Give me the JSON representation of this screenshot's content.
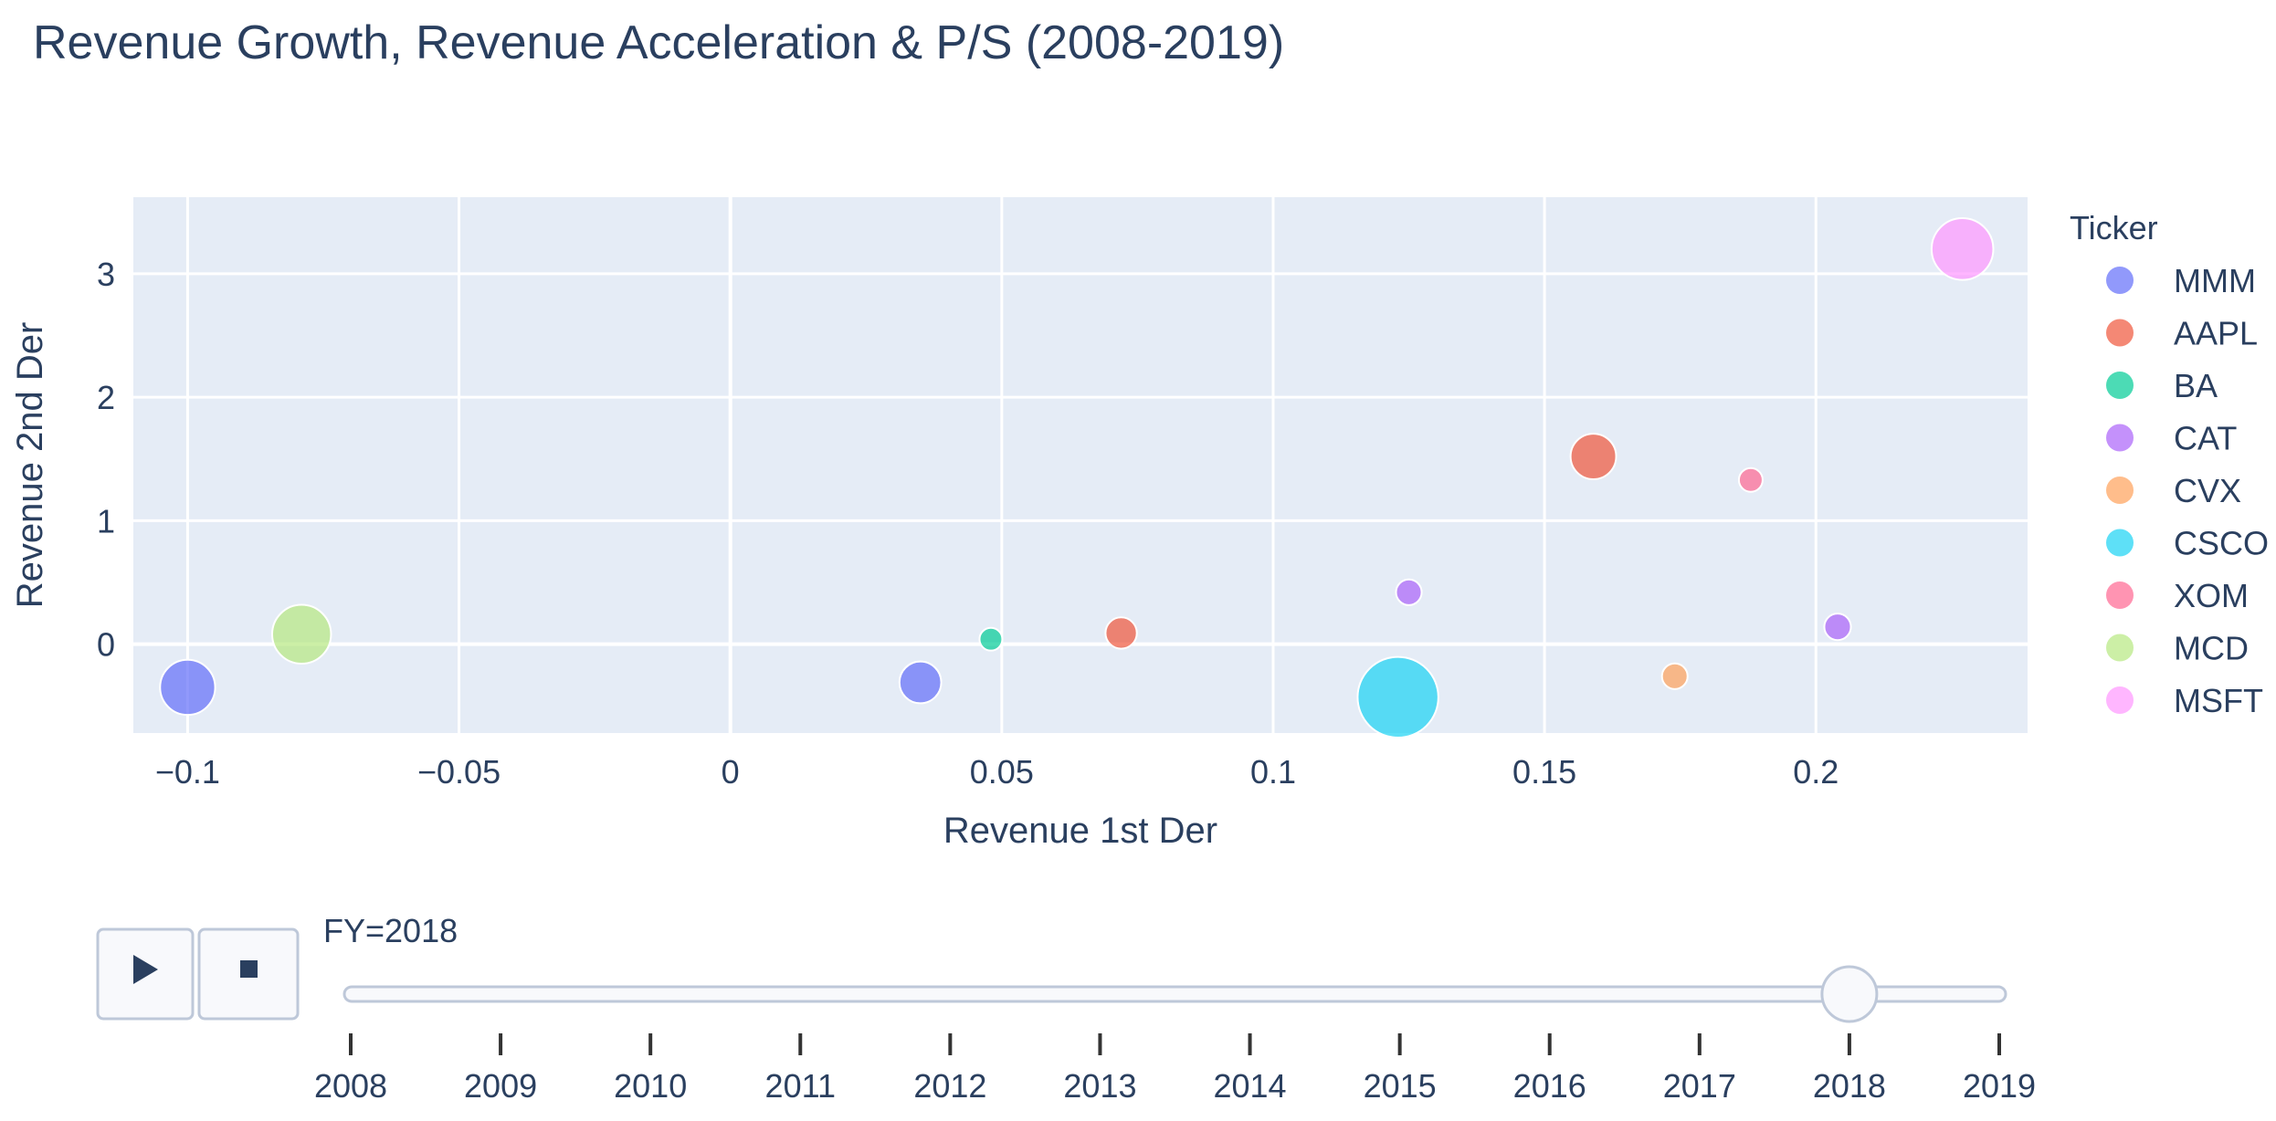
{
  "chart_data": {
    "type": "scatter",
    "title": "Revenue Growth, Revenue Acceleration & P/S (2008-2019)",
    "xlabel": "Revenue 1st Der",
    "ylabel": "Revenue 2nd Der",
    "xlim": [
      -0.11,
      0.239
    ],
    "ylim": [
      -0.72,
      3.62
    ],
    "xticks": [
      -0.1,
      -0.05,
      0,
      0.05,
      0.1,
      0.15,
      0.2
    ],
    "xtick_labels": [
      "−0.1",
      "−0.05",
      "0",
      "0.05",
      "0.1",
      "0.15",
      "0.2"
    ],
    "yticks": [
      0,
      1,
      2,
      3
    ],
    "ytick_labels": [
      "0",
      "1",
      "2",
      "3"
    ],
    "grid": true,
    "legend_title": "Ticker",
    "legend_position": "right",
    "series": [
      {
        "name": "MMM",
        "color": "#636efa",
        "points": [
          {
            "x": -0.1,
            "y": -0.35
          },
          {
            "x": 0.035,
            "y": -0.31
          }
        ]
      },
      {
        "name": "AAPL",
        "color": "#EF553B",
        "points": [
          {
            "x": 0.072,
            "y": 0.09
          },
          {
            "x": 0.159,
            "y": 1.52
          }
        ]
      },
      {
        "name": "BA",
        "color": "#00cc96",
        "points": [
          {
            "x": 0.048,
            "y": 0.04
          }
        ]
      },
      {
        "name": "CAT",
        "color": "#ab63fa",
        "points": [
          {
            "x": 0.125,
            "y": 0.42
          },
          {
            "x": 0.204,
            "y": 0.14
          }
        ]
      },
      {
        "name": "CVX",
        "color": "#FFA15A",
        "points": [
          {
            "x": 0.174,
            "y": -0.26
          }
        ]
      },
      {
        "name": "CSCO",
        "color": "#19d3f3",
        "points": [
          {
            "x": 0.123,
            "y": -0.43
          }
        ]
      },
      {
        "name": "XOM",
        "color": "#FF6692",
        "points": [
          {
            "x": 0.188,
            "y": 1.33
          }
        ]
      },
      {
        "name": "MCD",
        "color": "#B6E880",
        "points": [
          {
            "x": -0.079,
            "y": 0.08
          }
        ]
      },
      {
        "name": "MSFT",
        "color": "#FF97FF",
        "points": [
          {
            "x": 0.227,
            "y": 3.2
          }
        ]
      }
    ],
    "point_sizes": {
      "MMM": [
        0.58,
        0.44
      ],
      "AAPL": [
        0.33,
        0.48
      ],
      "BA": [
        0.24
      ],
      "CAT": [
        0.27,
        0.28
      ],
      "CVX": [
        0.27
      ],
      "CSCO": [
        0.85
      ],
      "XOM": [
        0.25
      ],
      "MCD": [
        0.62
      ],
      "MSFT": [
        0.65
      ]
    }
  },
  "slider": {
    "label_prefix": "FY=",
    "current": "2018",
    "steps": [
      "2008",
      "2009",
      "2010",
      "2011",
      "2012",
      "2013",
      "2014",
      "2015",
      "2016",
      "2017",
      "2018",
      "2019"
    ]
  },
  "controls": {
    "play_icon": "play-icon",
    "stop_icon": "stop-icon"
  }
}
